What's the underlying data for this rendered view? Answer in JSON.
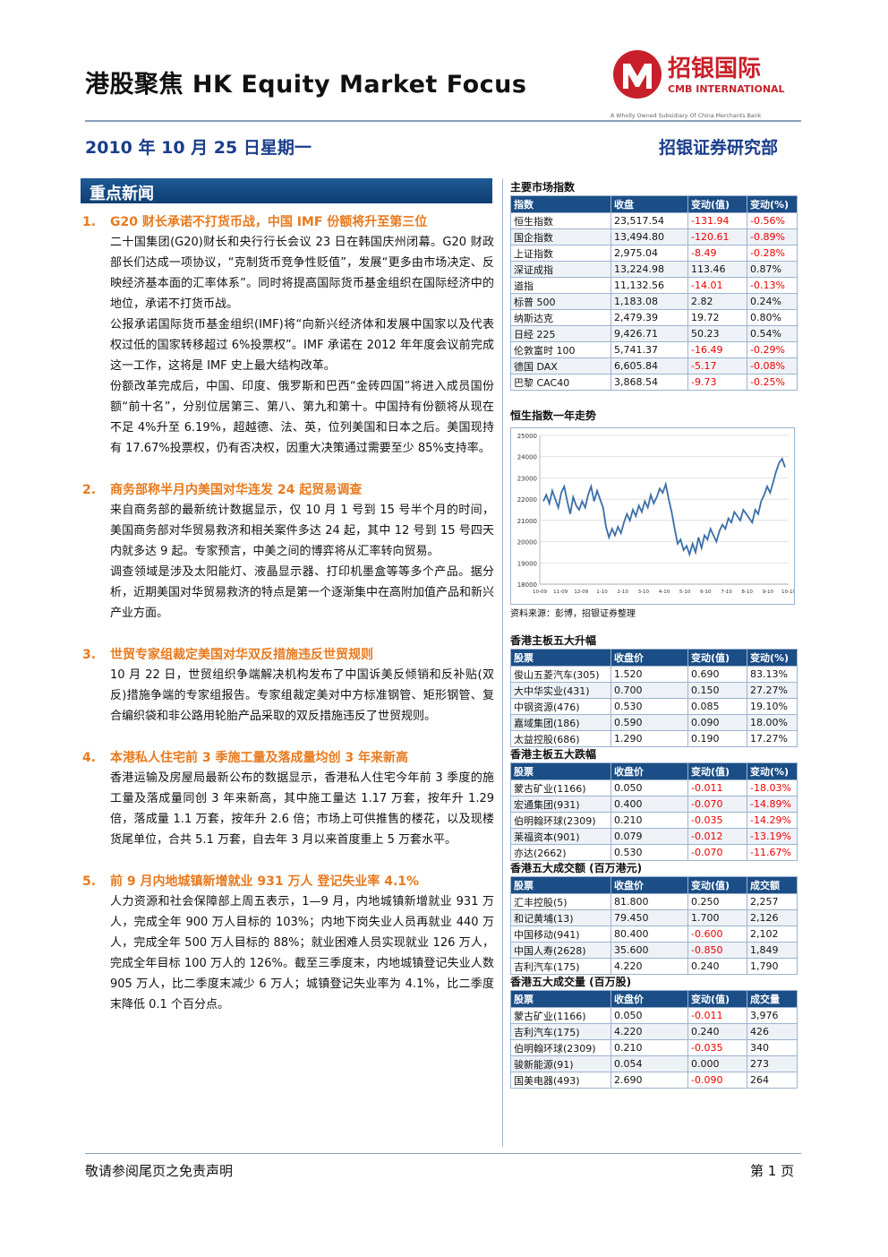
{
  "header": {
    "title": "港股聚焦 HK Equity Market Focus",
    "date": "2010 年 10 月 25 日星期一",
    "department": "招银证券研究部",
    "logo_cn": "招银国际",
    "logo_en": "CMB INTERNATIONAL",
    "logo_sub": "A Wholly Owned Subsidiary Of China Merchants Bank",
    "brand_color": "#c8202a"
  },
  "news": {
    "heading": "重点新闻",
    "items": [
      {
        "num": "1.",
        "title": "G20 财长承诺不打货币战，中国 IMF 份额将升至第三位",
        "paras": [
          "二十国集团(G20)财长和央行行长会议 23 日在韩国庆州闭幕。G20 财政部长们达成一项协议，“克制货币竞争性贬值”，发展“更多由市场决定、反映经济基本面的汇率体系”。同时将提高国际货币基金组织在国际经济中的地位，承诺不打货币战。",
          "公报承诺国际货币基金组织(IMF)将“向新兴经济体和发展中国家以及代表权过低的国家转移超过 6%投票权”。IMF 承诺在 2012 年年度会议前完成这一工作，这将是 IMF 史上最大结构改革。",
          "份额改革完成后，中国、印度、俄罗斯和巴西“金砖四国”将进入成员国份额“前十名”，分别位居第三、第八、第九和第十。中国持有份额将从现在不足 4%升至 6.19%，超越德、法、英，位列美国和日本之后。美国现持有 17.67%投票权，仍有否决权，因重大决策通过需要至少 85%支持率。"
        ]
      },
      {
        "num": "2.",
        "title": "商务部称半月内美国对华连发 24 起贸易调查",
        "paras": [
          "来自商务部的最新统计数据显示，仅 10 月 1 号到 15 号半个月的时间，美国商务部对华贸易救济和相关案件多达 24 起，其中 12 号到 15 号四天内就多达 9 起。专家预言，中美之间的博弈将从汇率转向贸易。",
          "调查领域是涉及太阳能灯、液晶显示器、打印机墨盒等等多个产品。据分析，近期美国对华贸易救济的特点是第一个逐渐集中在高附加值产品和新兴产业方面。"
        ]
      },
      {
        "num": "3.",
        "title": "世贸专家组裁定美国对华双反措施违反世贸规则",
        "paras": [
          "10 月 22 日，世贸组织争端解决机构发布了中国诉美反倾销和反补贴(双反)措施争端的专家组报告。专家组裁定美对中方标准钢管、矩形钢管、复合编织袋和非公路用轮胎产品采取的双反措施违反了世贸规则。"
        ]
      },
      {
        "num": "4.",
        "title": "本港私人住宅前 3 季施工量及落成量均创 3 年来新高",
        "paras": [
          "香港运输及房屋局最新公布的数据显示，香港私人住宅今年前 3 季度的施工量及落成量同创 3 年来新高，其中施工量达 1.17 万套，按年升 1.29 倍，落成量 1.1 万套，按年升 2.6 倍；市场上可供推售的楼花，以及现楼货尾单位，合共 5.1 万套，自去年 3 月以来首度重上 5 万套水平。"
        ]
      },
      {
        "num": "5.",
        "title": "前 9 月内地城镇新增就业 931 万人 登记失业率 4.1%",
        "paras": [
          "人力资源和社会保障部上周五表示，1—9 月，内地城镇新增就业 931 万人，完成全年 900 万人目标的 103%；内地下岗失业人员再就业 440 万人，完成全年 500 万人目标的 88%；就业困难人员实现就业 126 万人，完成全年目标 100 万人的 126%。截至三季度末，内地城镇登记失业人数 905 万人，比二季度末减少 6 万人；城镇登记失业率为 4.1%，比二季度末降低 0.1 个百分点。"
        ]
      }
    ]
  },
  "tables": [
    {
      "title": "主要市场指数",
      "headers": [
        "指数",
        "收盘",
        "变动(值)",
        "变动(%)"
      ],
      "rows": [
        [
          "恒生指数",
          "23,517.54",
          "-131.94",
          "-0.56%"
        ],
        [
          "国企指数",
          "13,494.80",
          "-120.61",
          "-0.89%"
        ],
        [
          "上证指数",
          "2,975.04",
          "-8.49",
          "-0.28%"
        ],
        [
          "深证成指",
          "13,224.98",
          "113.46",
          "0.87%"
        ],
        [
          "道指",
          "11,132.56",
          "-14.01",
          "-0.13%"
        ],
        [
          "标普 500",
          "1,183.08",
          "2.82",
          "0.24%"
        ],
        [
          "纳斯达克",
          "2,479.39",
          "19.72",
          "0.80%"
        ],
        [
          "日经 225",
          "9,426.71",
          "50.23",
          "0.54%"
        ],
        [
          "伦敦富时 100",
          "5,741.37",
          "-16.49",
          "-0.29%"
        ],
        [
          "德国 DAX",
          "6,605.84",
          "-5.17",
          "-0.08%"
        ],
        [
          "巴黎 CAC40",
          "3,868.54",
          "-9.73",
          "-0.25%"
        ]
      ]
    },
    {
      "title": "香港主板五大升幅",
      "headers": [
        "股票",
        "收盘价",
        "变动(值)",
        "变动(%)"
      ],
      "rows": [
        [
          "俊山五菱汽车(305)",
          "1.520",
          "0.690",
          "83.13%"
        ],
        [
          "大中华实业(431)",
          "0.700",
          "0.150",
          "27.27%"
        ],
        [
          "中钢资源(476)",
          "0.530",
          "0.085",
          "19.10%"
        ],
        [
          "嘉域集团(186)",
          "0.590",
          "0.090",
          "18.00%"
        ],
        [
          "太益控股(686)",
          "1.290",
          "0.190",
          "17.27%"
        ]
      ]
    },
    {
      "title": "香港主板五大跌幅",
      "headers": [
        "股票",
        "收盘价",
        "变动(值)",
        "变动(%)"
      ],
      "rows": [
        [
          "蒙古矿业(1166)",
          "0.050",
          "-0.011",
          "-18.03%"
        ],
        [
          "宏通集团(931)",
          "0.400",
          "-0.070",
          "-14.89%"
        ],
        [
          "伯明翰环球(2309)",
          "0.210",
          "-0.035",
          "-14.29%"
        ],
        [
          "莱福资本(901)",
          "0.079",
          "-0.012",
          "-13.19%"
        ],
        [
          "亦达(2662)",
          "0.530",
          "-0.070",
          "-11.67%"
        ]
      ]
    },
    {
      "title": "香港五大成交额 (百万港元)",
      "headers": [
        "股票",
        "收盘价",
        "变动(值)",
        "成交额"
      ],
      "rows": [
        [
          "汇丰控股(5)",
          "81.800",
          "0.250",
          "2,257"
        ],
        [
          "和记黄埔(13)",
          "79.450",
          "1.700",
          "2,126"
        ],
        [
          "中国移动(941)",
          "80.400",
          "-0.600",
          "2,102"
        ],
        [
          "中国人寿(2628)",
          "35.600",
          "-0.850",
          "1,849"
        ],
        [
          "吉利汽车(175)",
          "4.220",
          "0.240",
          "1,790"
        ]
      ]
    },
    {
      "title": "香港五大成交量 (百万股)",
      "headers": [
        "股票",
        "收盘价",
        "变动(值)",
        "成交量"
      ],
      "rows": [
        [
          "蒙古矿业(1166)",
          "0.050",
          "-0.011",
          "3,976"
        ],
        [
          "吉利汽车(175)",
          "4.220",
          "0.240",
          "426"
        ],
        [
          "伯明翰环球(2309)",
          "0.210",
          "-0.035",
          "340"
        ],
        [
          "骏新能源(91)",
          "0.054",
          "0.000",
          "273"
        ],
        [
          "国美电器(493)",
          "2.690",
          "-0.090",
          "264"
        ]
      ]
    }
  ],
  "chart": {
    "title": "恒生指数一年走势",
    "source": "资料来源：彭博，招银证券整理"
  },
  "chart_data": {
    "type": "line",
    "ylim": [
      18000,
      25000
    ],
    "yticks": [
      "25000",
      "24000",
      "23000",
      "22000",
      "21000",
      "20000",
      "19000",
      "18000"
    ],
    "xticks": [
      "10-09",
      "11-09",
      "12-09",
      "1-10",
      "2-10",
      "3-10",
      "4-10",
      "5-10",
      "6-10",
      "7-10",
      "8-10",
      "9-10",
      "10-10"
    ],
    "series": [
      {
        "color": "#3b6ea8",
        "values": [
          21900,
          22200,
          21800,
          22400,
          22000,
          21600,
          22300,
          22600,
          21900,
          21300,
          22100,
          21700,
          21500,
          21900,
          21600,
          22200,
          22600,
          21900,
          22400,
          22000,
          21600,
          20700,
          20200,
          20600,
          20300,
          20700,
          20400,
          20900,
          21300,
          21000,
          21500,
          21200,
          21700,
          21400,
          21900,
          21600,
          22200,
          21800,
          22100,
          22500,
          22300,
          22700,
          22000,
          21400,
          20600,
          19900,
          20100,
          19600,
          19800,
          19400,
          19900,
          19500,
          20200,
          19700,
          20300,
          20100,
          20600,
          20300,
          20000,
          20500,
          20800,
          20600,
          21100,
          20900,
          21400,
          21200,
          21000,
          21500,
          21300,
          21100,
          20900,
          21500,
          21300,
          21900,
          22200,
          22600,
          22300,
          22800,
          23300,
          23700,
          23900,
          23500
        ]
      }
    ]
  },
  "footer": {
    "disclaimer": "敬请参阅尾页之免责声明",
    "page": "第 1 页"
  }
}
